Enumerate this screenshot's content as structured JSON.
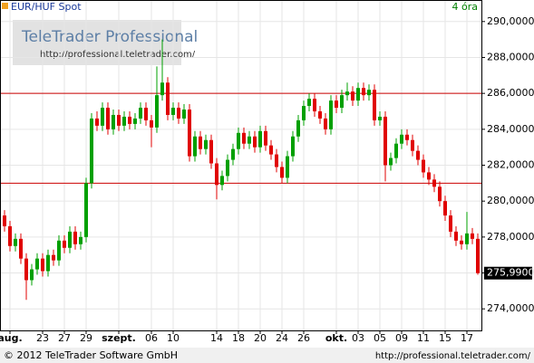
{
  "chart_data": {
    "type": "candlestick",
    "title": "EUR/HUF Spot",
    "interval": "4 óra",
    "watermark": {
      "title": "TeleTrader Professional",
      "url": "http://professional.teletrader.com/"
    },
    "footer": {
      "left": "© 2012 TeleTrader Software GmbH",
      "right": "http://professional.teletrader.com/"
    },
    "up_color": "#00a000",
    "down_color": "#e00000",
    "line_color": "#cc0000",
    "hlines": [
      286,
      281
    ],
    "last": {
      "value": 275.99,
      "label": "275,9900"
    },
    "ylim": [
      272.8,
      291.2
    ],
    "yticks": [
      {
        "value": 274,
        "label": "274,0000"
      },
      {
        "value": 276,
        "label": "276,0000"
      },
      {
        "value": 278,
        "label": "278,0000"
      },
      {
        "value": 280,
        "label": "280,0000"
      },
      {
        "value": 282,
        "label": "282,0000"
      },
      {
        "value": 284,
        "label": "284,0000"
      },
      {
        "value": 286,
        "label": "286,0000"
      },
      {
        "value": 288,
        "label": "288,0000"
      },
      {
        "value": 290,
        "label": "290,0000"
      }
    ],
    "xticks": [
      {
        "value": 1,
        "label": "aug."
      },
      {
        "value": 7,
        "label": "23"
      },
      {
        "value": 11,
        "label": "27"
      },
      {
        "value": 15,
        "label": "29"
      },
      {
        "value": 21,
        "label": "szept."
      },
      {
        "value": 27,
        "label": "06"
      },
      {
        "value": 31,
        "label": "10"
      },
      {
        "value": 39,
        "label": "14"
      },
      {
        "value": 43,
        "label": "18"
      },
      {
        "value": 47,
        "label": "20"
      },
      {
        "value": 51,
        "label": "24"
      },
      {
        "value": 55,
        "label": "26"
      },
      {
        "value": 61,
        "label": "okt."
      },
      {
        "value": 65,
        "label": "03"
      },
      {
        "value": 69,
        "label": "05"
      },
      {
        "value": 73,
        "label": "09"
      },
      {
        "value": 77,
        "label": "11"
      },
      {
        "value": 81,
        "label": "15"
      },
      {
        "value": 85,
        "label": "17"
      }
    ],
    "open": [
      279.2,
      278.6,
      277.5,
      277.9,
      276.8,
      275.6,
      276.2,
      276.8,
      276.1,
      277.0,
      276.7,
      277.8,
      277.4,
      278.3,
      277.6,
      278.0,
      281.0,
      284.6,
      284.2,
      285.2,
      284.0,
      284.8,
      284.2,
      284.7,
      284.3,
      284.6,
      285.2,
      284.5,
      284.1,
      285.9,
      286.6,
      284.8,
      285.2,
      284.6,
      285.1,
      282.5,
      283.6,
      282.9,
      283.4,
      282.1,
      280.9,
      281.4,
      282.3,
      282.9,
      283.8,
      283.2,
      283.6,
      283.0,
      283.9,
      283.1,
      282.6,
      281.9,
      281.3,
      282.5,
      283.6,
      284.5,
      285.3,
      285.7,
      285.0,
      284.6,
      284.0,
      285.6,
      285.2,
      285.9,
      286.1,
      285.6,
      286.3,
      285.9,
      286.2,
      284.5,
      284.7,
      282.0,
      282.4,
      283.2,
      283.7,
      283.4,
      282.8,
      282.3,
      281.6,
      281.2,
      280.8,
      280.0,
      279.2,
      278.3,
      277.8,
      277.6,
      278.2,
      277.9
    ],
    "high": [
      279.5,
      278.9,
      278.2,
      278.2,
      277.1,
      276.5,
      277.1,
      277.1,
      277.3,
      277.3,
      278.1,
      278.1,
      278.6,
      278.6,
      278.3,
      281.3,
      284.9,
      285.0,
      285.5,
      285.5,
      285.1,
      285.1,
      285.0,
      285.0,
      284.9,
      285.5,
      285.5,
      284.8,
      287.5,
      289.0,
      286.9,
      285.5,
      285.5,
      285.4,
      285.4,
      283.9,
      283.9,
      283.7,
      283.7,
      282.4,
      281.7,
      282.6,
      283.2,
      284.1,
      284.1,
      283.9,
      283.9,
      284.2,
      284.2,
      283.4,
      282.9,
      282.2,
      282.8,
      283.9,
      284.8,
      285.6,
      286.0,
      286.0,
      285.3,
      284.9,
      285.9,
      285.9,
      286.2,
      286.6,
      286.4,
      286.6,
      286.6,
      286.5,
      286.5,
      285.0,
      285.0,
      282.7,
      283.5,
      284.0,
      284.0,
      283.7,
      283.1,
      282.6,
      281.9,
      281.5,
      281.1,
      280.3,
      279.5,
      278.6,
      278.1,
      279.4,
      278.5,
      278.2
    ],
    "low": [
      278.3,
      277.2,
      277.2,
      276.5,
      274.5,
      275.3,
      275.9,
      275.8,
      275.8,
      276.4,
      276.4,
      277.1,
      277.1,
      277.3,
      277.3,
      277.7,
      280.7,
      283.9,
      283.9,
      283.7,
      283.7,
      283.9,
      283.9,
      284.0,
      284.0,
      284.3,
      284.2,
      283.0,
      283.8,
      285.6,
      284.5,
      284.5,
      284.3,
      284.3,
      282.2,
      282.2,
      282.6,
      282.6,
      281.8,
      280.1,
      280.6,
      281.1,
      282.0,
      282.6,
      282.9,
      282.9,
      282.7,
      282.7,
      282.8,
      282.3,
      281.6,
      281.0,
      281.0,
      282.2,
      283.3,
      284.2,
      285.0,
      284.7,
      284.3,
      283.7,
      283.7,
      284.9,
      284.9,
      285.6,
      285.3,
      285.3,
      285.6,
      285.6,
      284.2,
      284.2,
      281.1,
      281.7,
      282.1,
      282.9,
      283.1,
      282.5,
      282.0,
      281.3,
      280.9,
      280.5,
      279.7,
      278.9,
      278.0,
      277.5,
      277.3,
      277.3,
      277.6,
      275.9
    ],
    "close": [
      278.6,
      277.5,
      277.9,
      276.8,
      275.6,
      276.2,
      276.8,
      276.1,
      277.0,
      276.7,
      277.8,
      277.4,
      278.3,
      277.6,
      278.0,
      281.0,
      284.6,
      284.2,
      285.2,
      284.0,
      284.8,
      284.2,
      284.7,
      284.3,
      284.6,
      285.2,
      284.5,
      284.1,
      285.9,
      286.6,
      284.8,
      285.2,
      284.6,
      285.1,
      282.5,
      283.6,
      282.9,
      283.4,
      282.1,
      280.9,
      281.4,
      282.3,
      282.9,
      283.8,
      283.2,
      283.6,
      283.0,
      283.9,
      283.1,
      282.6,
      281.9,
      281.3,
      282.5,
      283.6,
      284.5,
      285.3,
      285.7,
      285.0,
      284.6,
      284.0,
      285.6,
      285.2,
      285.9,
      286.1,
      285.6,
      286.3,
      285.9,
      286.2,
      284.5,
      284.7,
      282.0,
      282.4,
      283.2,
      283.7,
      283.4,
      282.8,
      282.3,
      281.6,
      281.2,
      280.8,
      280.0,
      279.2,
      278.3,
      277.8,
      277.6,
      278.2,
      277.9,
      275.99
    ]
  }
}
